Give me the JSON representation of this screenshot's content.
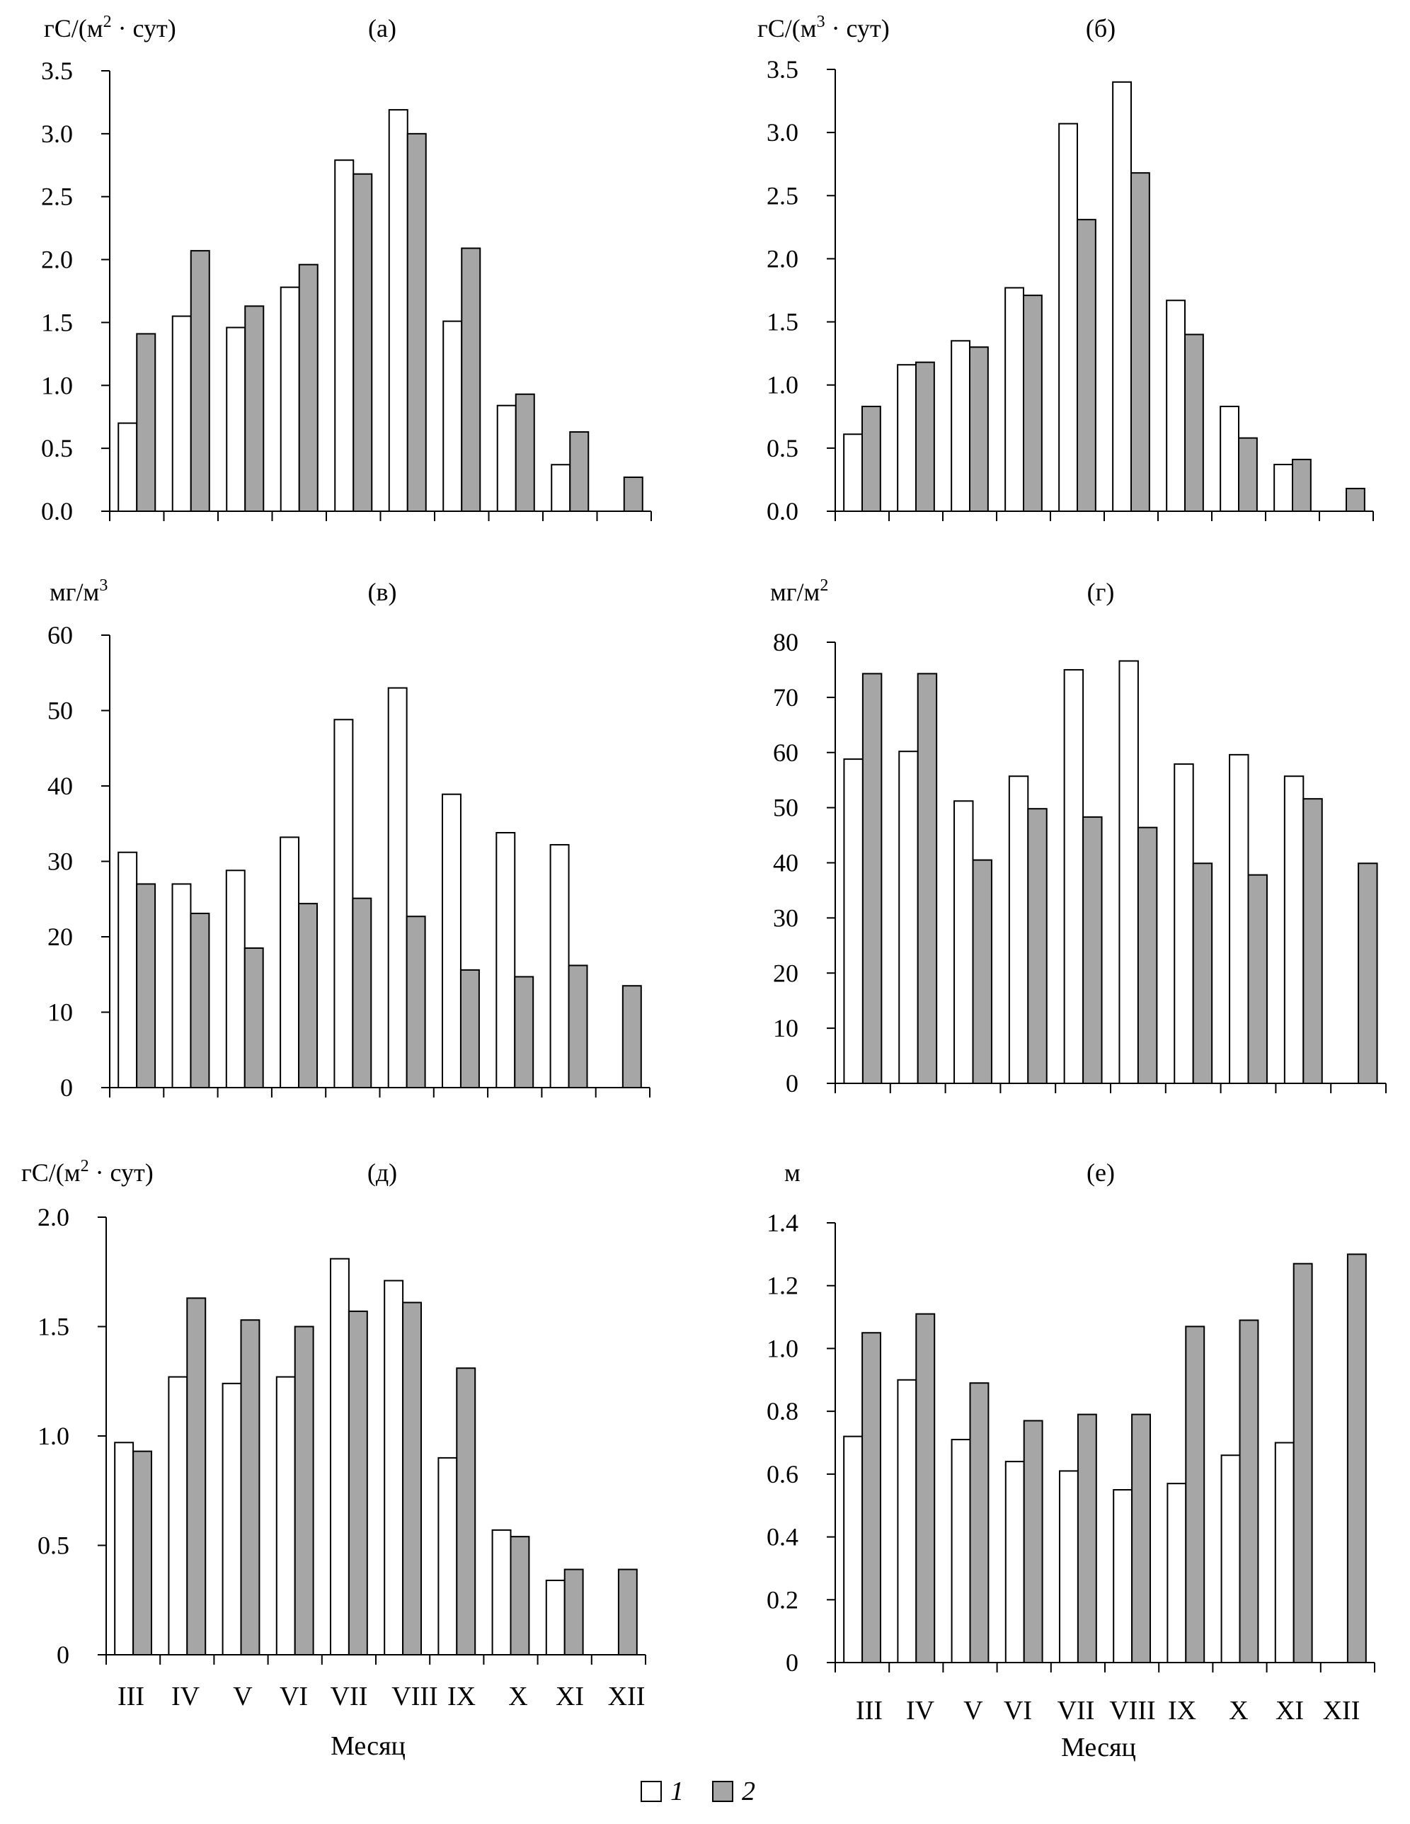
{
  "colors": {
    "series1": "#ffffff",
    "series2": "#a6a6a6",
    "stroke": "#000000"
  },
  "legend": {
    "item1": "1",
    "item2": "2"
  },
  "chart_data": [
    {
      "id": "a",
      "type": "bar",
      "title": "(а)",
      "ylabel": "гС/(м2 · сут)",
      "ylim": [
        0,
        3.5
      ],
      "yticks": [
        "0.0",
        "0.5",
        "1.0",
        "1.5",
        "2.0",
        "2.5",
        "3.0",
        "3.5"
      ],
      "categories": [
        "III",
        "IV",
        "V",
        "VI",
        "VII",
        "VIII",
        "IX",
        "X",
        "XI",
        "XII"
      ],
      "series": [
        {
          "name": "1",
          "values": [
            0.7,
            1.55,
            1.46,
            1.78,
            2.79,
            3.19,
            1.51,
            0.84,
            0.37,
            null
          ]
        },
        {
          "name": "2",
          "values": [
            1.41,
            2.07,
            1.63,
            1.96,
            2.68,
            3.0,
            2.09,
            0.93,
            0.63,
            0.27
          ]
        }
      ]
    },
    {
      "id": "b",
      "type": "bar",
      "title": "(б)",
      "ylabel": "гС/(м3 · сут)",
      "ylim": [
        0,
        3.5
      ],
      "yticks": [
        "0.0",
        "0.5",
        "1.0",
        "1.5",
        "2.0",
        "2.5",
        "3.0",
        "3.5"
      ],
      "categories": [
        "III",
        "IV",
        "V",
        "VI",
        "VII",
        "VIII",
        "IX",
        "X",
        "XI",
        "XII"
      ],
      "series": [
        {
          "name": "1",
          "values": [
            0.61,
            1.16,
            1.35,
            1.77,
            3.07,
            3.4,
            1.67,
            0.83,
            0.37,
            null
          ]
        },
        {
          "name": "2",
          "values": [
            0.83,
            1.18,
            1.3,
            1.71,
            2.31,
            2.68,
            1.4,
            0.58,
            0.41,
            0.18
          ]
        }
      ]
    },
    {
      "id": "v",
      "type": "bar",
      "title": "(в)",
      "ylabel": "мг/м3",
      "ylim": [
        0,
        60
      ],
      "yticks": [
        "0",
        "10",
        "20",
        "30",
        "40",
        "50",
        "60"
      ],
      "categories": [
        "III",
        "IV",
        "V",
        "VI",
        "VII",
        "VIII",
        "IX",
        "X",
        "XI",
        "XII"
      ],
      "series": [
        {
          "name": "1",
          "values": [
            31.2,
            27.0,
            28.8,
            33.2,
            48.8,
            53.0,
            38.9,
            33.8,
            32.2,
            null
          ]
        },
        {
          "name": "2",
          "values": [
            27.0,
            23.1,
            18.5,
            24.4,
            25.1,
            22.7,
            15.6,
            14.7,
            16.2,
            13.5
          ]
        }
      ]
    },
    {
      "id": "g",
      "type": "bar",
      "title": "(г)",
      "ylabel": "мг/м2",
      "ylim": [
        0,
        80
      ],
      "yticks": [
        "0",
        "10",
        "20",
        "30",
        "40",
        "50",
        "60",
        "70",
        "80"
      ],
      "categories": [
        "III",
        "IV",
        "V",
        "VI",
        "VII",
        "VIII",
        "IX",
        "X",
        "XI",
        "XII"
      ],
      "series": [
        {
          "name": "1",
          "values": [
            58.8,
            60.2,
            51.2,
            55.7,
            75.0,
            76.6,
            57.9,
            59.6,
            55.7,
            null
          ]
        },
        {
          "name": "2",
          "values": [
            74.3,
            74.3,
            40.5,
            49.8,
            48.3,
            46.4,
            39.9,
            37.8,
            51.6,
            39.9
          ]
        }
      ]
    },
    {
      "id": "d",
      "type": "bar",
      "title": "(д)",
      "ylabel": "гС/(м2 · сут)",
      "ylim": [
        0,
        2.0
      ],
      "yticks": [
        "0",
        "0.5",
        "1.0",
        "1.5",
        "2.0"
      ],
      "xlabel": "Месяц",
      "categories": [
        "III",
        "IV",
        "V",
        "VI",
        "VII",
        "VIII",
        "IX",
        "X",
        "XI",
        "XII"
      ],
      "series": [
        {
          "name": "1",
          "values": [
            0.97,
            1.27,
            1.24,
            1.27,
            1.81,
            1.71,
            0.9,
            0.57,
            0.34,
            null
          ]
        },
        {
          "name": "2",
          "values": [
            0.93,
            1.63,
            1.53,
            1.5,
            1.57,
            1.61,
            1.31,
            0.54,
            0.39,
            0.39
          ]
        }
      ]
    },
    {
      "id": "e",
      "type": "bar",
      "title": "(е)",
      "ylabel": "м",
      "ylim": [
        0,
        1.4
      ],
      "yticks": [
        "0",
        "0.2",
        "0.4",
        "0.6",
        "0.8",
        "1.0",
        "1.2",
        "1.4"
      ],
      "xlabel": "Месяц",
      "categories": [
        "III",
        "IV",
        "V",
        "VI",
        "VII",
        "VIII",
        "IX",
        "X",
        "XI",
        "XII"
      ],
      "series": [
        {
          "name": "1",
          "values": [
            0.72,
            0.9,
            0.71,
            0.64,
            0.61,
            0.55,
            0.57,
            0.66,
            0.7,
            null
          ]
        },
        {
          "name": "2",
          "values": [
            1.05,
            1.11,
            0.89,
            0.77,
            0.79,
            0.79,
            1.07,
            1.09,
            1.27,
            1.3
          ]
        }
      ]
    }
  ]
}
